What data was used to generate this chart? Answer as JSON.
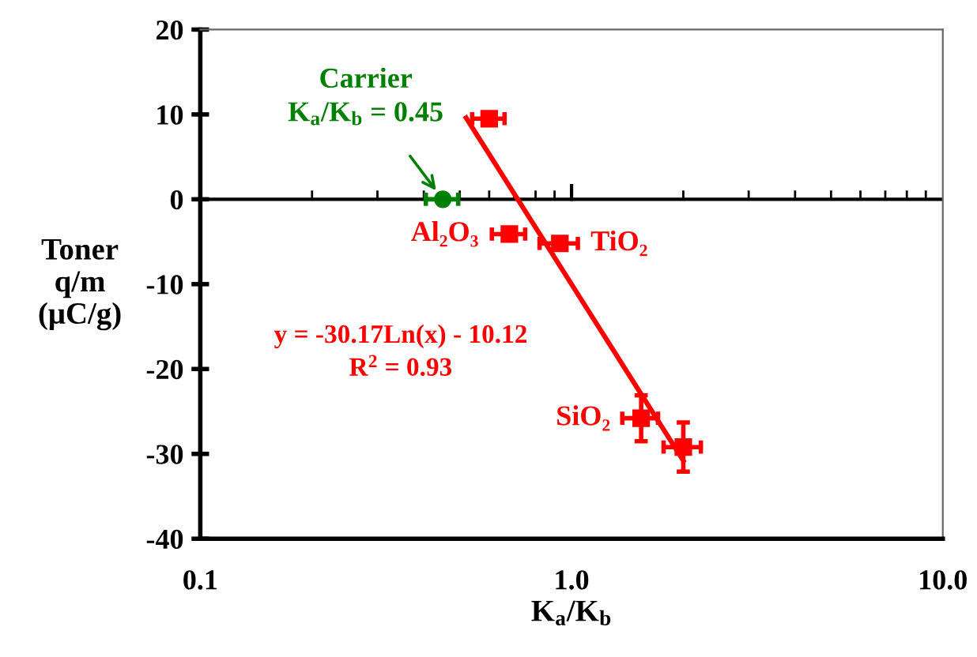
{
  "chart_data": {
    "type": "scatter",
    "xlabel": "K$_{a}$/K$_{b}$",
    "ylabel": "Toner\nq/m\n(μC/g)",
    "log": "x",
    "xlim": [
      0.1,
      10
    ],
    "xticks": [
      0.1,
      {
        "value": 1,
        "label": "1.0"
      },
      {
        "value": 10,
        "label": "10.0"
      }
    ],
    "ylim": [
      -40,
      20
    ],
    "yticks": [
      -40,
      -30,
      -20,
      -10,
      0,
      10,
      20
    ],
    "grid": false,
    "series": [
      {
        "color": "#008000",
        "marker": "circle",
        "x": [
          0.45
        ],
        "values": [
          0
        ],
        "xerrors": [
          0.045
        ]
      },
      {
        "color": "#ff0000",
        "marker": "square",
        "x": [
          0.6,
          0.68,
          0.93,
          1.54,
          2.0
        ],
        "values": [
          9.5,
          -4.1,
          -5.2,
          -25.8,
          -29.2
        ],
        "xerrors": [
          0.06,
          0.07,
          0.11,
          0.17,
          0.23
        ],
        "errors": [
          null,
          null,
          null,
          2.7,
          2.9
        ]
      },
      {
        "type": "line",
        "color": "#ff0000",
        "marker": "none",
        "line_style": "solid",
        "x": [
          0.52,
          2.0
        ],
        "values": [
          9.6,
          -30.8
        ]
      }
    ],
    "ref_lines": [
      {
        "axis": "y",
        "value": 0,
        "color": "#000000"
      }
    ],
    "annotations": [
      {
        "text": "Carrier\nK$_{a}$/K$_{b}$ = 0.45",
        "x": 0.45,
        "y": 0
      },
      {
        "text": "Al₂O₃",
        "x": 0.68,
        "y": -4.1
      },
      {
        "text": "TiO₂",
        "x": 0.93,
        "y": -5.2
      },
      {
        "text": "SiO₂",
        "x": 1.54,
        "y": -25.8
      },
      "y = -30.17Ln(x) - 10.12\nR$^{2}$ = 0.93"
    ]
  }
}
